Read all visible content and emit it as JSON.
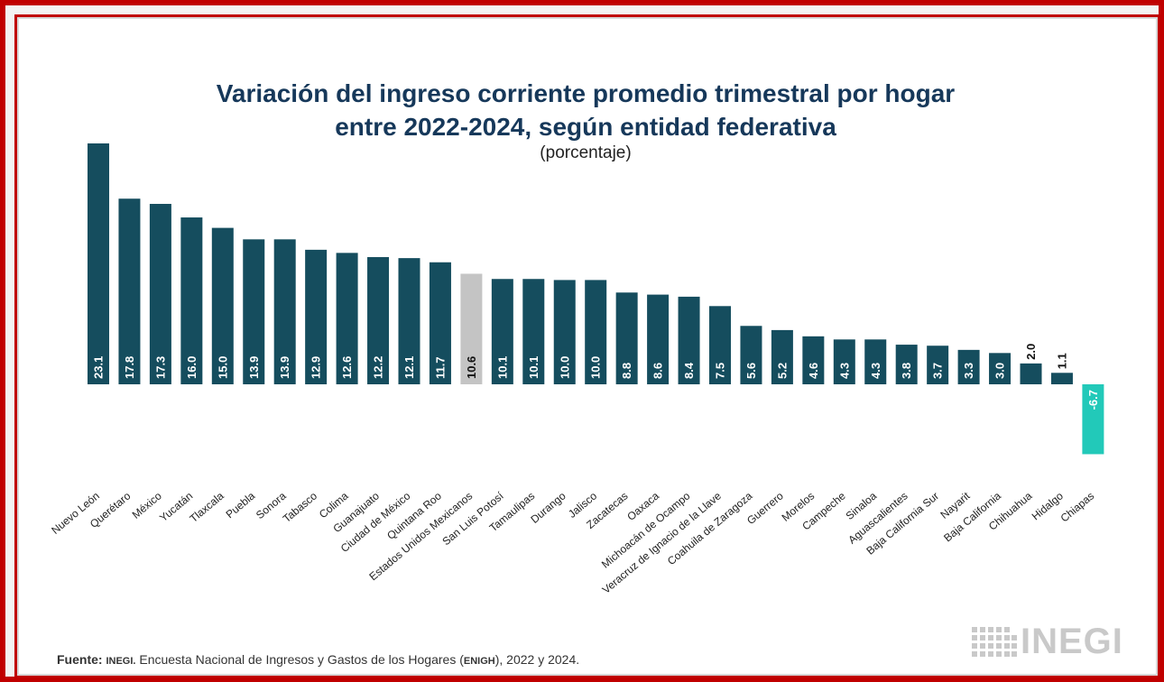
{
  "title_line1": "Variación del ingreso corriente promedio trimestral por hogar",
  "title_line2": "entre 2022-2024, según entidad federativa",
  "subtitle": "(porcentaje)",
  "source": {
    "label": "Fuente:",
    "org": "INEGI.",
    "text1": "Encuesta Nacional de Ingresos y Gastos de los Hogares (",
    "abbr": "ENIGH",
    "text2": "), 2022 y 2024."
  },
  "logo_text": "INEGI",
  "colors": {
    "bar": "#154d5e",
    "national": "#c4c4c4",
    "negative": "#22c9b9",
    "label_text": "#ffffff",
    "outside_label_text": "#111111",
    "title": "#16385a",
    "frame": "#c00000"
  },
  "chart_data": {
    "type": "bar",
    "title": "Variación del ingreso corriente promedio trimestral por hogar entre 2022-2024, según entidad federativa",
    "subtitle": "(porcentaje)",
    "xlabel": "",
    "ylabel": "",
    "grid": false,
    "categories": [
      "Nuevo León",
      "Querétaro",
      "México",
      "Yucatán",
      "Tlaxcala",
      "Puebla",
      "Sonora",
      "Tabasco",
      "Colima",
      "Guanajuato",
      "Ciudad de México",
      "Quintana Roo",
      "Estados Unidos Mexicanos",
      "San Luis Potosí",
      "Tamaulipas",
      "Durango",
      "Jalisco",
      "Zacatecas",
      "Oaxaca",
      "Michoacán de Ocampo",
      "Veracruz de Ignacio de la Llave",
      "Coahuila de Zaragoza",
      "Guerrero",
      "Morelos",
      "Campeche",
      "Sinaloa",
      "Aguascalientes",
      "Baja California Sur",
      "Nayarit",
      "Baja California",
      "Chihuahua",
      "Hidalgo",
      "Chiapas"
    ],
    "values": [
      23.1,
      17.8,
      17.3,
      16.0,
      15.0,
      13.9,
      13.9,
      12.9,
      12.6,
      12.2,
      12.1,
      11.7,
      10.6,
      10.1,
      10.1,
      10.0,
      10.0,
      8.8,
      8.6,
      8.4,
      7.5,
      5.6,
      5.2,
      4.6,
      4.3,
      4.3,
      3.8,
      3.7,
      3.3,
      3.0,
      2.0,
      1.1,
      -6.7
    ],
    "labels": [
      "23.1",
      "17.8",
      "17.3",
      "16.0",
      "15.0",
      "13.9",
      "13.9",
      "12.9",
      "12.6",
      "12.2",
      "12.1",
      "11.7",
      "10.6",
      "10.1",
      "10.1",
      "10.0",
      "10.0",
      "8.8",
      "8.6",
      "8.4",
      "7.5",
      "5.6",
      "5.2",
      "4.6",
      "4.3",
      "4.3",
      "3.8",
      "3.7",
      "3.3",
      "3.0",
      "2.0",
      "1.1",
      "-6.7"
    ],
    "highlight": "Estados Unidos Mexicanos"
  }
}
